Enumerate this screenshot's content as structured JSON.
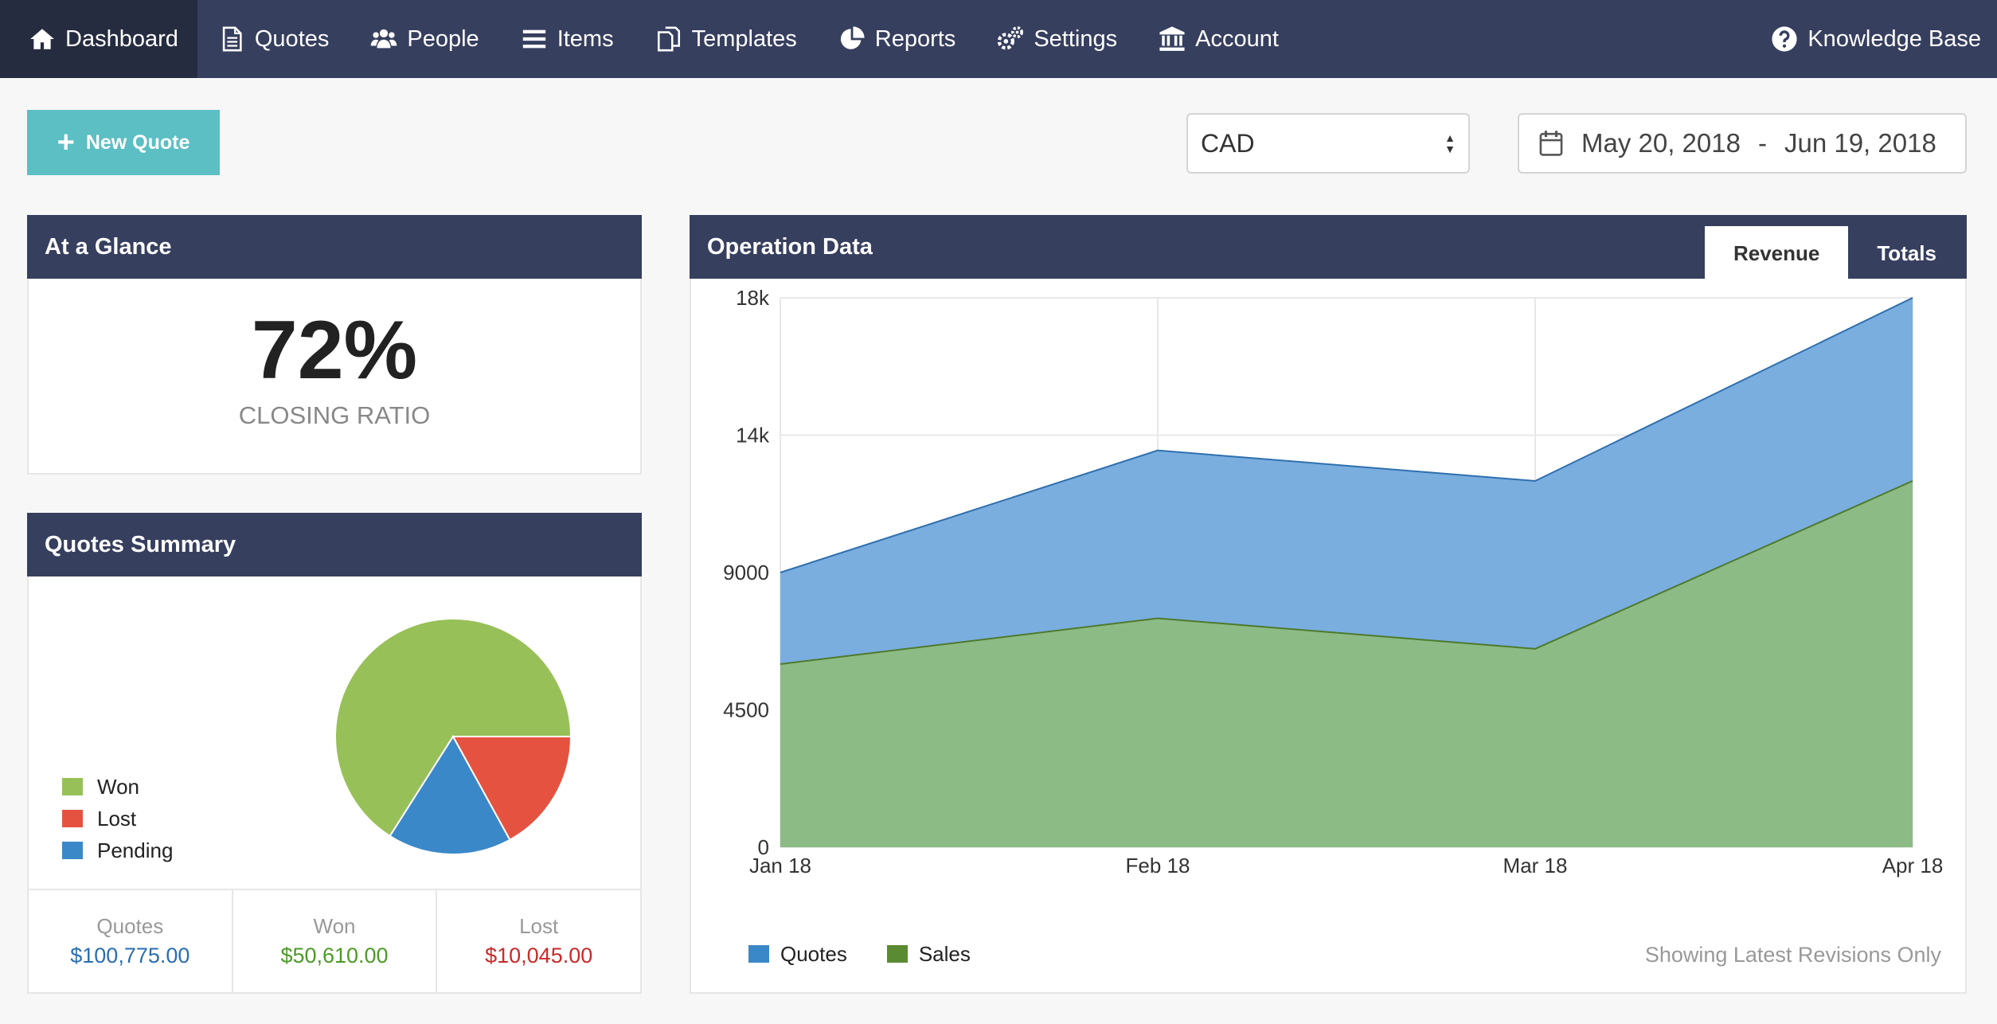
{
  "nav": {
    "items": [
      {
        "label": "Dashboard",
        "icon": "home-icon",
        "active": true
      },
      {
        "label": "Quotes",
        "icon": "document-icon",
        "active": false
      },
      {
        "label": "People",
        "icon": "people-icon",
        "active": false
      },
      {
        "label": "Items",
        "icon": "list-icon",
        "active": false
      },
      {
        "label": "Templates",
        "icon": "templates-icon",
        "active": false
      },
      {
        "label": "Reports",
        "icon": "pie-chart-icon",
        "active": false
      },
      {
        "label": "Settings",
        "icon": "gears-icon",
        "active": false
      },
      {
        "label": "Account",
        "icon": "bank-icon",
        "active": false
      }
    ],
    "right": {
      "label": "Knowledge Base",
      "icon": "question-circle-icon"
    }
  },
  "toolbar": {
    "new_quote_label": "New Quote",
    "currency": "CAD",
    "date_from": "May 20, 2018",
    "date_separator": "-",
    "date_to": "Jun 19, 2018"
  },
  "glance": {
    "title": "At a Glance",
    "ratio_value": "72%",
    "ratio_label": "CLOSING RATIO"
  },
  "summary": {
    "title": "Quotes Summary",
    "legend": [
      {
        "label": "Won",
        "color": "#98c058"
      },
      {
        "label": "Lost",
        "color": "#e55340"
      },
      {
        "label": "Pending",
        "color": "#3b88c9"
      }
    ],
    "stats": [
      {
        "label": "Quotes",
        "value": "$100,775.00",
        "color": "#2a6eb0"
      },
      {
        "label": "Won",
        "value": "$50,610.00",
        "color": "#4b9b25"
      },
      {
        "label": "Lost",
        "value": "$10,045.00",
        "color": "#c92a2a"
      }
    ]
  },
  "operation": {
    "title": "Operation Data",
    "tabs": [
      {
        "label": "Revenue",
        "active": true
      },
      {
        "label": "Totals",
        "active": false
      }
    ],
    "note": "Showing Latest Revisions Only"
  },
  "chart_data": [
    {
      "type": "pie",
      "title": "Quotes Summary",
      "labels": [
        "Won",
        "Lost",
        "Pending"
      ],
      "values": [
        66,
        17,
        17
      ],
      "colors": [
        "#98c058",
        "#e55340",
        "#3b88c9"
      ]
    },
    {
      "type": "area",
      "title": "Operation Data",
      "categories": [
        "Jan 18",
        "Feb 18",
        "Mar 18",
        "Apr 18"
      ],
      "series": [
        {
          "name": "Quotes",
          "values": [
            3000,
            5500,
            5500,
            6000
          ],
          "color": "#3b88c9",
          "fill": "#7aaedf"
        },
        {
          "name": "Sales",
          "values": [
            6000,
            7500,
            6500,
            12000
          ],
          "color": "#5a8a32",
          "fill": "#8cbb86"
        }
      ],
      "stacked": true,
      "yticks": [
        "0",
        "4500",
        "9000",
        "14k",
        "18k"
      ],
      "ylim": [
        0,
        18000
      ],
      "grid": true,
      "legend": "bottom-left"
    }
  ]
}
